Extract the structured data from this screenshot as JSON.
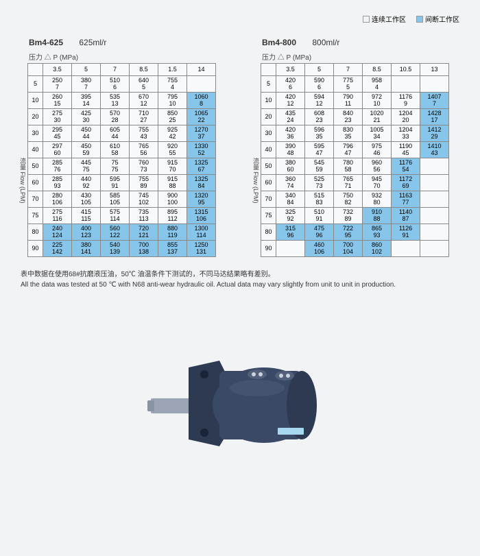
{
  "legend": {
    "continuous": "连续工作区",
    "intermittent": "间断工作区"
  },
  "table1": {
    "model": "Bm4-625",
    "spec": "625ml/r",
    "pressure_label": "压力  △ P   (MPa)",
    "flow_label_cn": "流量",
    "flow_label_en": "Flow (LPM)",
    "cols": [
      "3.5",
      "5",
      "7",
      "8.5",
      "1.5",
      "14"
    ],
    "rows": [
      "5",
      "10",
      "20",
      "30",
      "40",
      "50",
      "60",
      "70",
      "75",
      "80",
      "90"
    ],
    "cells": [
      [
        [
          "250",
          "7"
        ],
        [
          "380",
          "7"
        ],
        [
          "510",
          "6"
        ],
        [
          "640",
          "5"
        ],
        [
          "755",
          "4"
        ],
        [
          "",
          ""
        ]
      ],
      [
        [
          "260",
          "15"
        ],
        [
          "395",
          "14"
        ],
        [
          "535",
          "13"
        ],
        [
          "670",
          "12"
        ],
        [
          "795",
          "10"
        ],
        [
          "1060",
          "8",
          "hl"
        ]
      ],
      [
        [
          "275",
          "30"
        ],
        [
          "425",
          "30"
        ],
        [
          "570",
          "28"
        ],
        [
          "710",
          "27"
        ],
        [
          "850",
          "25"
        ],
        [
          "1065",
          "22",
          "hl"
        ]
      ],
      [
        [
          "295",
          "45"
        ],
        [
          "450",
          "44"
        ],
        [
          "605",
          "44"
        ],
        [
          "755",
          "43"
        ],
        [
          "925",
          "42"
        ],
        [
          "1270",
          "37",
          "hl"
        ]
      ],
      [
        [
          "297",
          "60"
        ],
        [
          "450",
          "59"
        ],
        [
          "610",
          "58"
        ],
        [
          "765",
          "56"
        ],
        [
          "920",
          "55"
        ],
        [
          "1330",
          "52",
          "hl"
        ]
      ],
      [
        [
          "285",
          "76"
        ],
        [
          "445",
          "75"
        ],
        [
          "75",
          "75"
        ],
        [
          "760",
          "73"
        ],
        [
          "915",
          "70"
        ],
        [
          "1325",
          "67",
          "hl"
        ]
      ],
      [
        [
          "285",
          "93"
        ],
        [
          "440",
          "92"
        ],
        [
          "595",
          "91"
        ],
        [
          "755",
          "89"
        ],
        [
          "915",
          "88"
        ],
        [
          "1325",
          "84",
          "hl"
        ]
      ],
      [
        [
          "280",
          "106"
        ],
        [
          "430",
          "105"
        ],
        [
          "585",
          "105"
        ],
        [
          "745",
          "102"
        ],
        [
          "900",
          "100"
        ],
        [
          "1320",
          "95",
          "hl"
        ]
      ],
      [
        [
          "275",
          "116"
        ],
        [
          "415",
          "115"
        ],
        [
          "575",
          "114"
        ],
        [
          "735",
          "113"
        ],
        [
          "895",
          "112"
        ],
        [
          "1315",
          "106",
          "hl"
        ]
      ],
      [
        [
          "240",
          "124",
          "hl"
        ],
        [
          "400",
          "123",
          "hl"
        ],
        [
          "560",
          "122",
          "hl"
        ],
        [
          "720",
          "121",
          "hl"
        ],
        [
          "880",
          "119",
          "hl"
        ],
        [
          "1300",
          "114",
          "hl"
        ]
      ],
      [
        [
          "225",
          "142",
          "hl"
        ],
        [
          "380",
          "141",
          "hl"
        ],
        [
          "540",
          "139",
          "hl"
        ],
        [
          "700",
          "138",
          "hl"
        ],
        [
          "855",
          "137",
          "hl"
        ],
        [
          "1250",
          "131",
          "hl"
        ]
      ]
    ]
  },
  "table2": {
    "model": "Bm4-800",
    "spec": "800ml/r",
    "pressure_label": "压力  △ P   (MPa)",
    "flow_label_cn": "流量",
    "flow_label_en": "Flow (LPM)",
    "cols": [
      "3.5",
      "5",
      "7",
      "8.5",
      "10.5",
      "13"
    ],
    "rows": [
      "5",
      "10",
      "20",
      "30",
      "40",
      "50",
      "60",
      "70",
      "75",
      "80",
      "90"
    ],
    "cells": [
      [
        [
          "420",
          "6"
        ],
        [
          "590",
          "6"
        ],
        [
          "775",
          "5"
        ],
        [
          "958",
          "4"
        ],
        [
          "",
          ""
        ],
        [
          "",
          ""
        ]
      ],
      [
        [
          "420",
          "12"
        ],
        [
          "594",
          "12"
        ],
        [
          "790",
          "11"
        ],
        [
          "972",
          "10"
        ],
        [
          "1176",
          "9"
        ],
        [
          "1407",
          "7",
          "hl"
        ]
      ],
      [
        [
          "435",
          "24"
        ],
        [
          "608",
          "23"
        ],
        [
          "840",
          "23"
        ],
        [
          "1020",
          "21"
        ],
        [
          "1204",
          "20"
        ],
        [
          "1428",
          "17",
          "hl"
        ]
      ],
      [
        [
          "420",
          "36"
        ],
        [
          "596",
          "35"
        ],
        [
          "830",
          "35"
        ],
        [
          "1005",
          "34"
        ],
        [
          "1204",
          "33"
        ],
        [
          "1412",
          "29",
          "hl"
        ]
      ],
      [
        [
          "390",
          "48"
        ],
        [
          "595",
          "47"
        ],
        [
          "796",
          "47"
        ],
        [
          "975",
          "46"
        ],
        [
          "1190",
          "45"
        ],
        [
          "1410",
          "43",
          "hl"
        ]
      ],
      [
        [
          "380",
          "60"
        ],
        [
          "545",
          "59"
        ],
        [
          "780",
          "58"
        ],
        [
          "960",
          "56"
        ],
        [
          "1176",
          "54",
          "hl"
        ],
        [
          "",
          ""
        ]
      ],
      [
        [
          "360",
          "74"
        ],
        [
          "525",
          "73"
        ],
        [
          "765",
          "71"
        ],
        [
          "945",
          "70"
        ],
        [
          "1172",
          "69",
          "hl"
        ],
        [
          "",
          ""
        ]
      ],
      [
        [
          "340",
          "84"
        ],
        [
          "515",
          "83"
        ],
        [
          "750",
          "82"
        ],
        [
          "932",
          "80"
        ],
        [
          "1163",
          "77",
          "hl"
        ],
        [
          "",
          ""
        ]
      ],
      [
        [
          "325",
          "92"
        ],
        [
          "510",
          "91"
        ],
        [
          "732",
          "89"
        ],
        [
          "910",
          "88",
          "hl"
        ],
        [
          "1140",
          "87",
          "hl"
        ],
        [
          "",
          ""
        ]
      ],
      [
        [
          "315",
          "96",
          "hl"
        ],
        [
          "475",
          "96",
          "hl"
        ],
        [
          "722",
          "95",
          "hl"
        ],
        [
          "865",
          "93",
          "hl"
        ],
        [
          "1126",
          "91",
          "hl"
        ],
        [
          "",
          ""
        ]
      ],
      [
        [
          "",
          ""
        ],
        [
          "460",
          "106",
          "hl"
        ],
        [
          "700",
          "104",
          "hl"
        ],
        [
          "860",
          "102",
          "hl"
        ],
        [
          "",
          ""
        ],
        [
          "",
          ""
        ]
      ]
    ]
  },
  "footnote_cn": "表中数据在使用68#抗磨液压油，50℃  油温条件下测试的，不同马达结果略有差别。",
  "footnote_en": "All the data  was tested at 50 ℃ with N68 anti-wear hydraulic oil. Actual data may vary slightly from unit to unit in production.",
  "motor_colors": {
    "body": "#3a4a66",
    "shaft": "#9ba5b5",
    "flange": "#2e3a52"
  }
}
